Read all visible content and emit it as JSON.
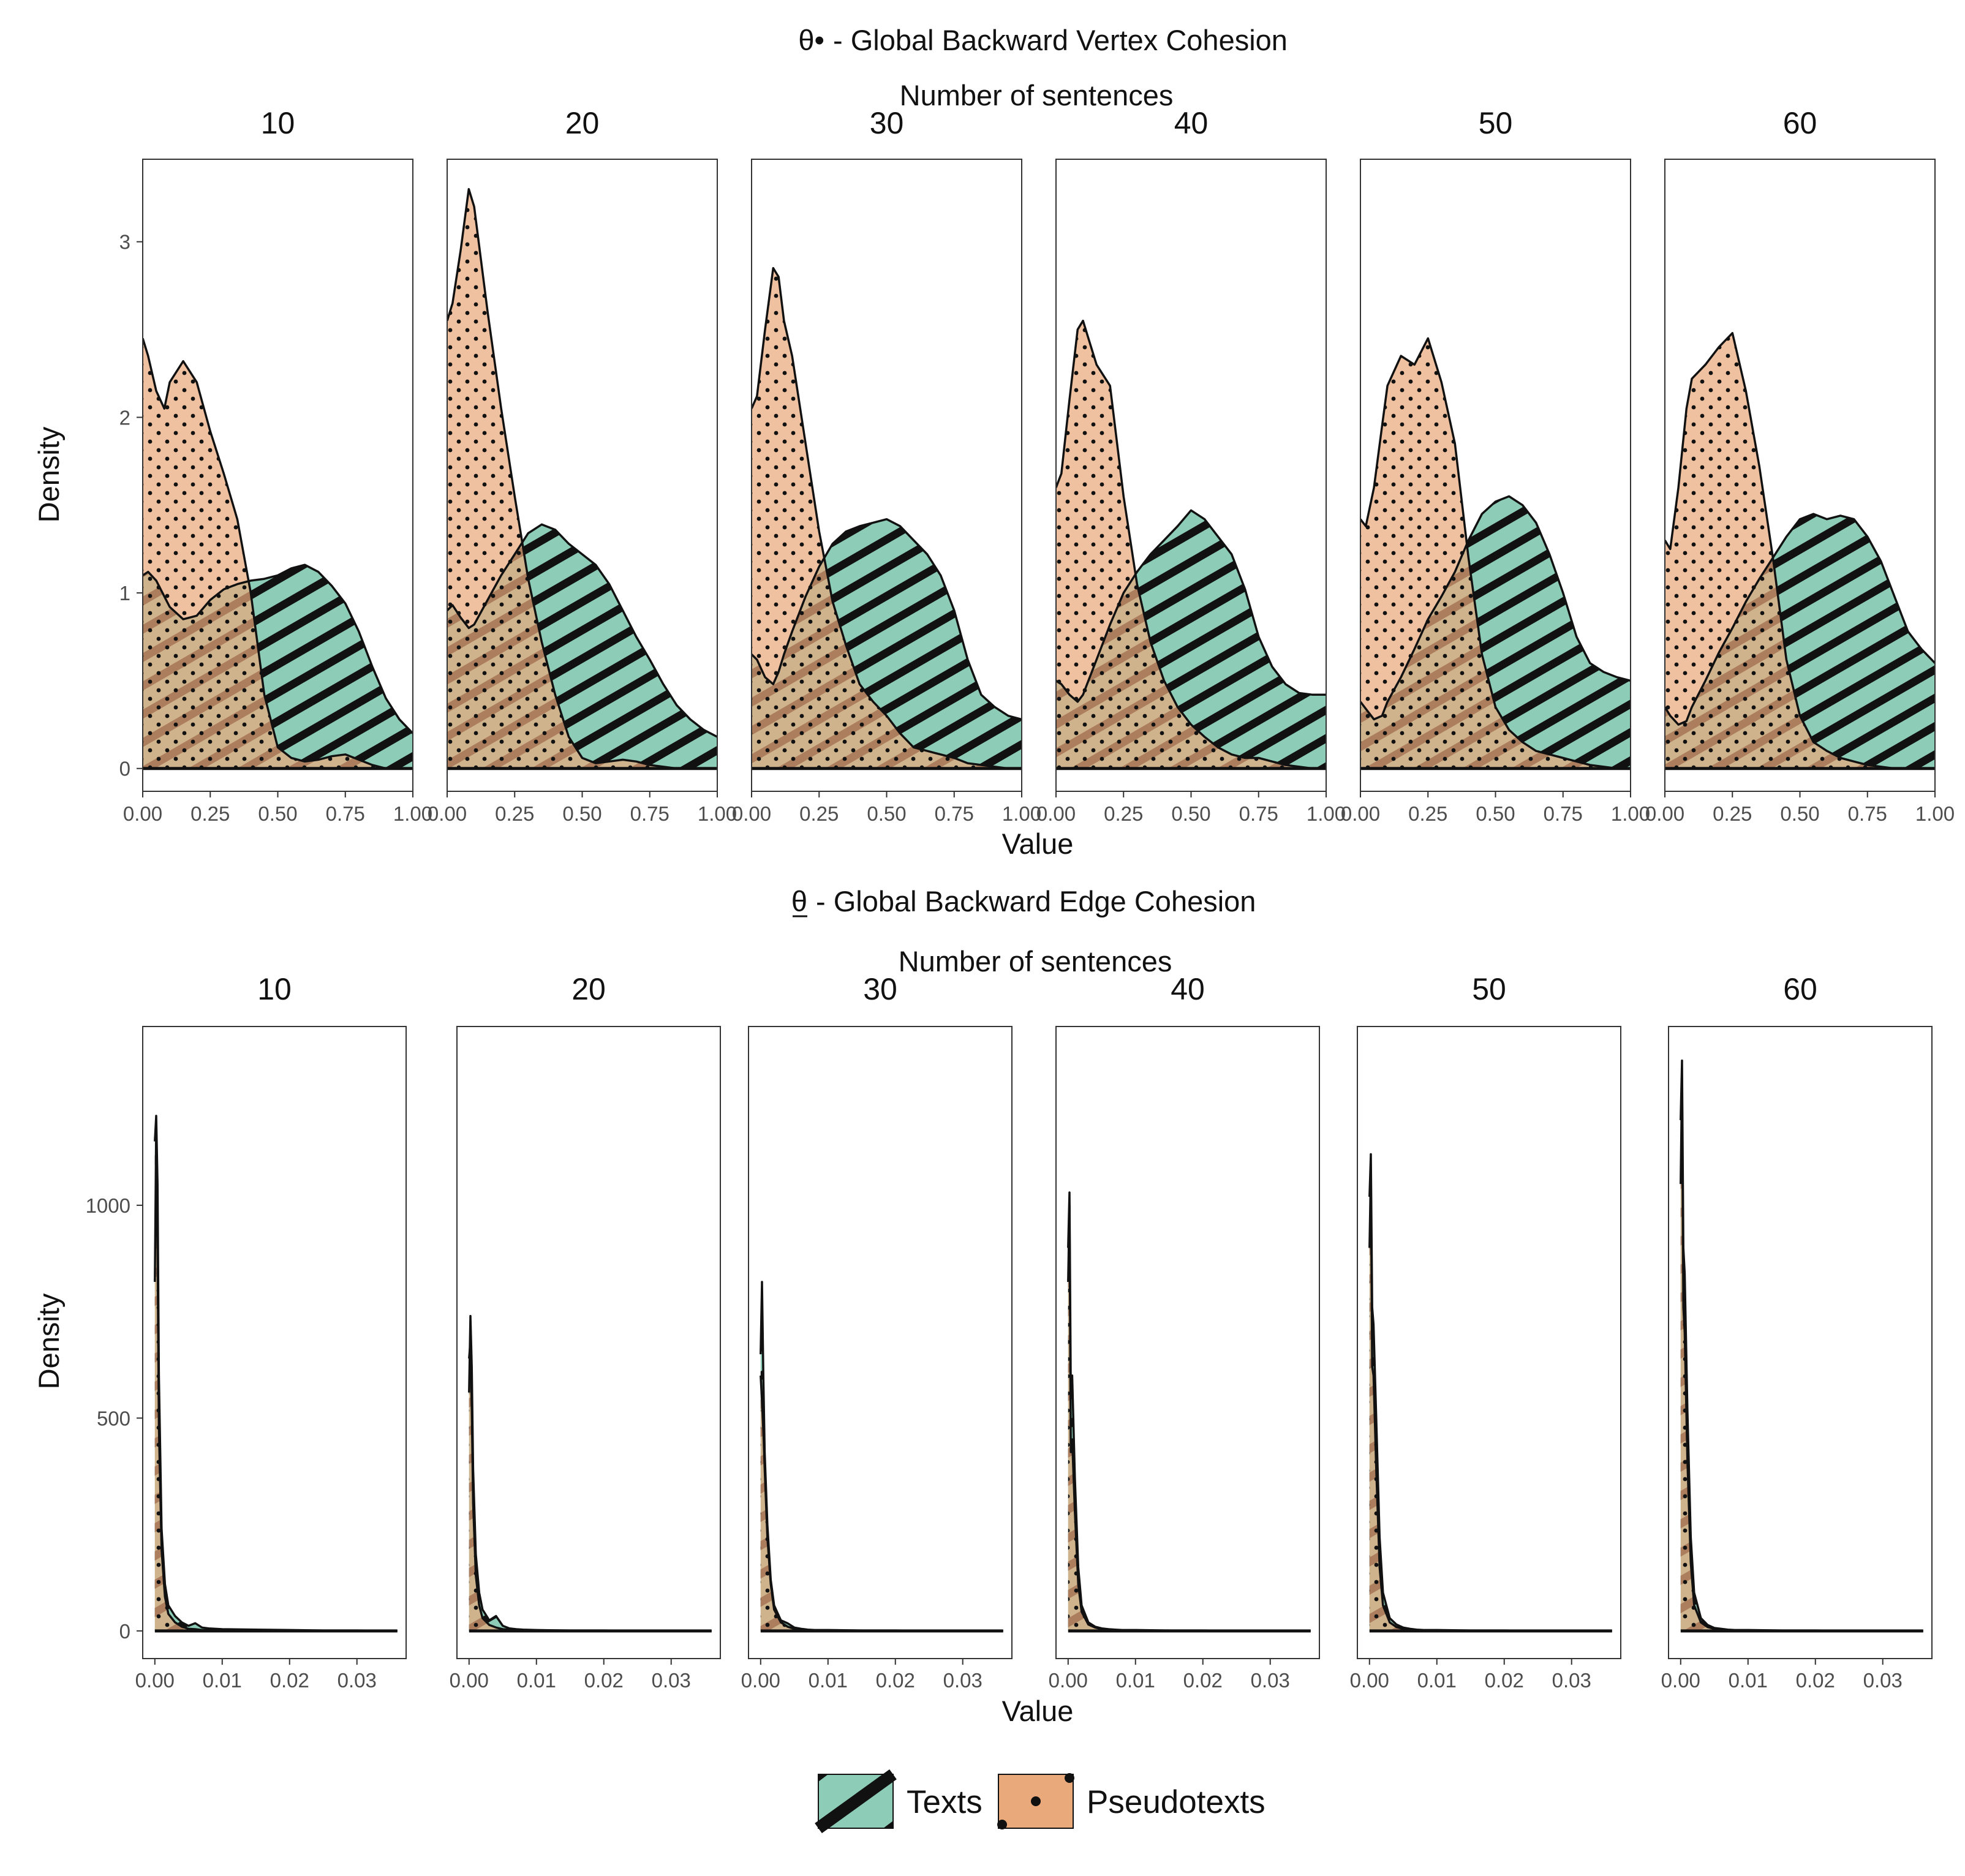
{
  "colors": {
    "texts": "#8dcdb8",
    "pseudotexts": "#e9a97b",
    "overlap": "#a87f50",
    "outline": "#111111"
  },
  "legend": {
    "texts_label": "Texts",
    "pseudotexts_label": "Pseudotexts"
  },
  "chart_data": [
    {
      "type": "area",
      "title_symbol": "θ•",
      "title": "- Global Backward Vertex Cohesion",
      "facet_title": "Number of sentences",
      "xlabel": "Value",
      "ylabel": "Density",
      "xlim": [
        0,
        1
      ],
      "ylim": [
        -0.13,
        3.47
      ],
      "xticks": [
        "0.00",
        "0.25",
        "0.50",
        "0.75",
        "1.00"
      ],
      "xtick_values": [
        0,
        0.25,
        0.5,
        0.75,
        1.0
      ],
      "yticks": [
        "0",
        "1",
        "2",
        "3"
      ],
      "ytick_values": [
        0,
        1,
        2,
        3
      ],
      "facets": [
        {
          "label": "10",
          "x": [
            0,
            0.02,
            0.05,
            0.08,
            0.1,
            0.15,
            0.2,
            0.25,
            0.3,
            0.35,
            0.4,
            0.45,
            0.5,
            0.55,
            0.6,
            0.65,
            0.7,
            0.75,
            0.8,
            0.85,
            0.9,
            0.95,
            1.0
          ],
          "texts": [
            1.1,
            1.12,
            1.07,
            0.98,
            0.92,
            0.85,
            0.87,
            0.96,
            1.02,
            1.05,
            1.07,
            1.08,
            1.1,
            1.14,
            1.16,
            1.12,
            1.04,
            0.94,
            0.78,
            0.58,
            0.4,
            0.28,
            0.2
          ],
          "pseudotexts": [
            2.45,
            2.35,
            2.15,
            2.05,
            2.2,
            2.32,
            2.2,
            1.92,
            1.68,
            1.42,
            1.0,
            0.42,
            0.12,
            0.06,
            0.04,
            0.05,
            0.07,
            0.08,
            0.05,
            0.02,
            0.0,
            0.0,
            0.0
          ]
        },
        {
          "label": "20",
          "x": [
            0,
            0.02,
            0.05,
            0.08,
            0.1,
            0.15,
            0.2,
            0.25,
            0.3,
            0.35,
            0.4,
            0.45,
            0.5,
            0.55,
            0.6,
            0.65,
            0.7,
            0.75,
            0.8,
            0.85,
            0.9,
            0.95,
            1.0
          ],
          "texts": [
            0.9,
            0.93,
            0.86,
            0.8,
            0.82,
            0.96,
            1.1,
            1.22,
            1.34,
            1.39,
            1.36,
            1.28,
            1.22,
            1.16,
            1.05,
            0.9,
            0.75,
            0.62,
            0.48,
            0.36,
            0.28,
            0.22,
            0.18
          ],
          "pseudotexts": [
            2.55,
            2.65,
            2.95,
            3.3,
            3.2,
            2.6,
            2.05,
            1.55,
            1.08,
            0.72,
            0.42,
            0.18,
            0.06,
            0.03,
            0.04,
            0.05,
            0.04,
            0.02,
            0.01,
            0.0,
            0.0,
            0.0,
            0.0
          ]
        },
        {
          "label": "30",
          "x": [
            0,
            0.02,
            0.05,
            0.08,
            0.1,
            0.12,
            0.15,
            0.2,
            0.25,
            0.3,
            0.35,
            0.4,
            0.45,
            0.5,
            0.55,
            0.6,
            0.65,
            0.7,
            0.75,
            0.8,
            0.85,
            0.9,
            0.95,
            1.0
          ],
          "texts": [
            0.65,
            0.62,
            0.52,
            0.48,
            0.55,
            0.65,
            0.78,
            0.98,
            1.15,
            1.28,
            1.35,
            1.38,
            1.4,
            1.42,
            1.38,
            1.3,
            1.22,
            1.1,
            0.9,
            0.62,
            0.42,
            0.35,
            0.3,
            0.28
          ],
          "pseudotexts": [
            2.05,
            2.12,
            2.5,
            2.85,
            2.8,
            2.55,
            2.35,
            1.85,
            1.35,
            0.95,
            0.7,
            0.48,
            0.38,
            0.3,
            0.2,
            0.12,
            0.1,
            0.08,
            0.06,
            0.03,
            0.02,
            0.01,
            0.0,
            0.0
          ]
        },
        {
          "label": "40",
          "x": [
            0,
            0.02,
            0.05,
            0.08,
            0.1,
            0.12,
            0.15,
            0.2,
            0.25,
            0.3,
            0.35,
            0.4,
            0.45,
            0.5,
            0.55,
            0.6,
            0.65,
            0.7,
            0.75,
            0.8,
            0.85,
            0.9,
            0.95,
            1.0
          ],
          "texts": [
            0.5,
            0.48,
            0.42,
            0.38,
            0.42,
            0.5,
            0.62,
            0.82,
            1.0,
            1.12,
            1.22,
            1.3,
            1.38,
            1.47,
            1.42,
            1.32,
            1.22,
            1.02,
            0.75,
            0.58,
            0.48,
            0.43,
            0.42,
            0.42
          ],
          "pseudotexts": [
            1.6,
            1.68,
            2.1,
            2.5,
            2.55,
            2.45,
            2.3,
            2.18,
            1.55,
            1.05,
            0.72,
            0.5,
            0.35,
            0.25,
            0.18,
            0.12,
            0.08,
            0.06,
            0.06,
            0.04,
            0.02,
            0.01,
            0.0,
            0.0
          ]
        },
        {
          "label": "50",
          "x": [
            0,
            0.02,
            0.05,
            0.08,
            0.1,
            0.15,
            0.2,
            0.25,
            0.3,
            0.35,
            0.4,
            0.45,
            0.5,
            0.55,
            0.6,
            0.65,
            0.7,
            0.75,
            0.8,
            0.85,
            0.9,
            0.95,
            1.0
          ],
          "texts": [
            0.38,
            0.34,
            0.28,
            0.3,
            0.38,
            0.52,
            0.68,
            0.85,
            0.98,
            1.12,
            1.3,
            1.45,
            1.52,
            1.55,
            1.5,
            1.4,
            1.22,
            1.0,
            0.75,
            0.6,
            0.55,
            0.52,
            0.5
          ],
          "pseudotexts": [
            1.42,
            1.38,
            1.6,
            1.95,
            2.18,
            2.35,
            2.3,
            2.45,
            2.2,
            1.85,
            1.2,
            0.65,
            0.35,
            0.22,
            0.15,
            0.1,
            0.08,
            0.06,
            0.04,
            0.02,
            0.01,
            0.0,
            0.0
          ]
        },
        {
          "label": "60",
          "x": [
            0,
            0.02,
            0.05,
            0.08,
            0.1,
            0.15,
            0.2,
            0.25,
            0.3,
            0.35,
            0.4,
            0.45,
            0.5,
            0.55,
            0.6,
            0.65,
            0.7,
            0.75,
            0.8,
            0.85,
            0.9,
            0.95,
            1.0
          ],
          "texts": [
            0.35,
            0.3,
            0.25,
            0.27,
            0.35,
            0.5,
            0.66,
            0.8,
            0.95,
            1.08,
            1.2,
            1.32,
            1.42,
            1.45,
            1.42,
            1.44,
            1.42,
            1.32,
            1.18,
            0.98,
            0.78,
            0.68,
            0.6
          ],
          "pseudotexts": [
            1.3,
            1.25,
            1.6,
            2.05,
            2.22,
            2.3,
            2.4,
            2.48,
            2.15,
            1.72,
            1.2,
            0.62,
            0.3,
            0.15,
            0.1,
            0.06,
            0.04,
            0.02,
            0.01,
            0.0,
            0.0,
            0.0,
            0.0
          ]
        }
      ]
    },
    {
      "type": "area",
      "title_symbol": "θ",
      "title": "- Global Backward Edge Cohesion",
      "facet_title": "Number of sentences",
      "xlabel": "Value",
      "ylabel": "Density",
      "xlim": [
        -0.0018,
        0.0373
      ],
      "ylim": [
        -65,
        1420
      ],
      "xticks": [
        "0.00",
        "0.01",
        "0.02",
        "0.03"
      ],
      "xtick_values": [
        0,
        0.01,
        0.02,
        0.03
      ],
      "yticks": [
        "0",
        "500",
        "1000"
      ],
      "ytick_values": [
        0,
        500,
        1000
      ],
      "facets": [
        {
          "label": "10",
          "x": [
            0,
            0.0002,
            0.0004,
            0.0006,
            0.001,
            0.0015,
            0.002,
            0.003,
            0.004,
            0.005,
            0.006,
            0.007,
            0.008,
            0.01,
            0.015,
            0.02,
            0.025,
            0.03,
            0.036
          ],
          "texts": [
            1150,
            1210,
            1050,
            600,
            240,
            110,
            60,
            35,
            20,
            12,
            18,
            8,
            6,
            4,
            3,
            2,
            1,
            1,
            0
          ],
          "pseudotexts": [
            820,
            1180,
            900,
            480,
            190,
            80,
            40,
            20,
            10,
            5,
            4,
            2,
            2,
            1,
            1,
            0,
            0,
            0,
            0
          ]
        },
        {
          "label": "20",
          "x": [
            0,
            0.0002,
            0.0004,
            0.0006,
            0.001,
            0.0015,
            0.002,
            0.003,
            0.004,
            0.005,
            0.006,
            0.007,
            0.008,
            0.01,
            0.015,
            0.02,
            0.025,
            0.03,
            0.036
          ],
          "texts": [
            560,
            740,
            620,
            380,
            180,
            90,
            50,
            25,
            35,
            12,
            6,
            4,
            3,
            2,
            1,
            1,
            0,
            0,
            0
          ],
          "pseudotexts": [
            640,
            680,
            520,
            300,
            130,
            60,
            30,
            14,
            8,
            4,
            3,
            2,
            1,
            1,
            0,
            0,
            0,
            0,
            0
          ]
        },
        {
          "label": "30",
          "x": [
            0,
            0.0002,
            0.0004,
            0.0006,
            0.001,
            0.0015,
            0.002,
            0.003,
            0.004,
            0.005,
            0.006,
            0.007,
            0.008,
            0.01,
            0.015,
            0.02,
            0.025,
            0.03,
            0.036
          ],
          "texts": [
            650,
            820,
            600,
            420,
            250,
            120,
            60,
            25,
            18,
            8,
            5,
            3,
            2,
            2,
            1,
            1,
            0,
            0,
            0
          ],
          "pseudotexts": [
            600,
            540,
            470,
            380,
            220,
            110,
            50,
            20,
            10,
            5,
            3,
            2,
            1,
            1,
            0,
            0,
            0,
            0,
            0
          ]
        },
        {
          "label": "40",
          "x": [
            0,
            0.0002,
            0.0004,
            0.0006,
            0.001,
            0.0015,
            0.002,
            0.003,
            0.004,
            0.005,
            0.006,
            0.007,
            0.008,
            0.01,
            0.015,
            0.02,
            0.025,
            0.03,
            0.036
          ],
          "texts": [
            900,
            1030,
            560,
            600,
            360,
            150,
            60,
            20,
            10,
            6,
            4,
            3,
            2,
            2,
            1,
            1,
            0,
            0,
            0
          ],
          "pseudotexts": [
            820,
            1000,
            420,
            450,
            280,
            110,
            45,
            15,
            8,
            4,
            3,
            2,
            1,
            1,
            0,
            0,
            0,
            0,
            0
          ]
        },
        {
          "label": "50",
          "x": [
            0,
            0.0002,
            0.0004,
            0.0006,
            0.001,
            0.0015,
            0.002,
            0.003,
            0.004,
            0.005,
            0.006,
            0.007,
            0.008,
            0.01,
            0.015,
            0.02,
            0.025,
            0.03,
            0.036
          ],
          "texts": [
            1020,
            1120,
            760,
            720,
            500,
            220,
            90,
            30,
            15,
            8,
            5,
            3,
            2,
            2,
            1,
            1,
            0,
            0,
            0
          ],
          "pseudotexts": [
            900,
            1080,
            620,
            600,
            380,
            150,
            60,
            20,
            9,
            5,
            3,
            2,
            1,
            1,
            0,
            0,
            0,
            0,
            0
          ]
        },
        {
          "label": "60",
          "x": [
            0,
            0.0002,
            0.0004,
            0.0006,
            0.001,
            0.0015,
            0.002,
            0.003,
            0.004,
            0.005,
            0.006,
            0.007,
            0.008,
            0.01,
            0.015,
            0.02,
            0.025,
            0.03,
            0.036
          ],
          "texts": [
            1200,
            1340,
            900,
            840,
            520,
            220,
            90,
            30,
            14,
            7,
            5,
            3,
            2,
            2,
            1,
            1,
            0,
            0,
            0
          ],
          "pseudotexts": [
            1050,
            1300,
            760,
            700,
            400,
            160,
            60,
            20,
            9,
            5,
            3,
            2,
            1,
            1,
            0,
            0,
            0,
            0,
            0
          ]
        }
      ]
    }
  ]
}
